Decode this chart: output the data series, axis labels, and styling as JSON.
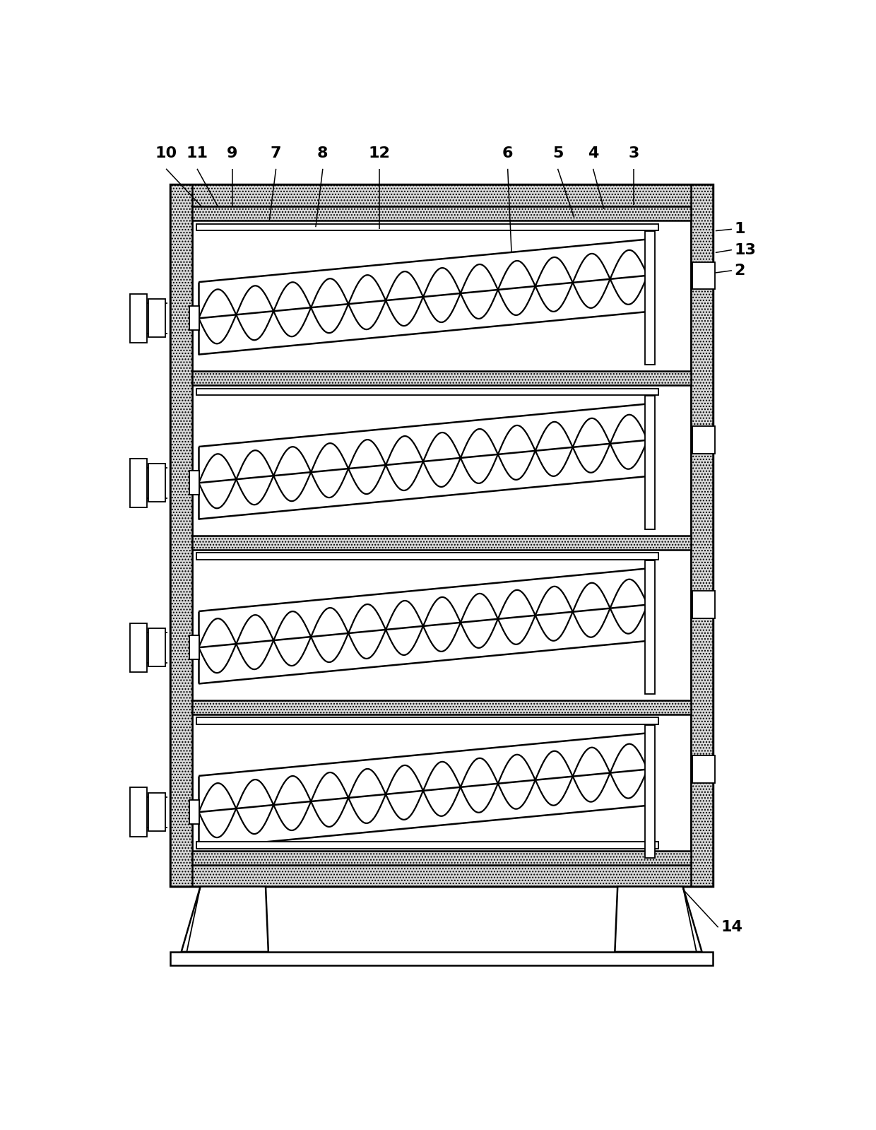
{
  "bg_color": "#ffffff",
  "line_color": "#000000",
  "OL": 108,
  "OT": 90,
  "OR": 1105,
  "OB": 1380,
  "WT": 40,
  "IL": 148,
  "IT": 130,
  "IR": 1065,
  "IB": 1340,
  "num_levels": 4,
  "labels_top": [
    [
      "10",
      100,
      45,
      165,
      130
    ],
    [
      "11",
      157,
      45,
      195,
      130
    ],
    [
      "9",
      222,
      45,
      222,
      130
    ],
    [
      "7",
      302,
      45,
      290,
      155
    ],
    [
      "8",
      388,
      45,
      375,
      168
    ],
    [
      "12",
      492,
      45,
      492,
      172
    ],
    [
      "6",
      728,
      45,
      735,
      215
    ],
    [
      "5",
      820,
      45,
      850,
      150
    ],
    [
      "4",
      885,
      45,
      905,
      135
    ],
    [
      "3",
      960,
      45,
      960,
      128
    ]
  ],
  "labels_right": [
    [
      "1",
      1145,
      172,
      1110,
      175
    ],
    [
      "13",
      1145,
      210,
      1110,
      215
    ],
    [
      "2",
      1145,
      248,
      1110,
      252
    ]
  ],
  "label_14": [
    1120,
    1455,
    1050,
    1385
  ]
}
